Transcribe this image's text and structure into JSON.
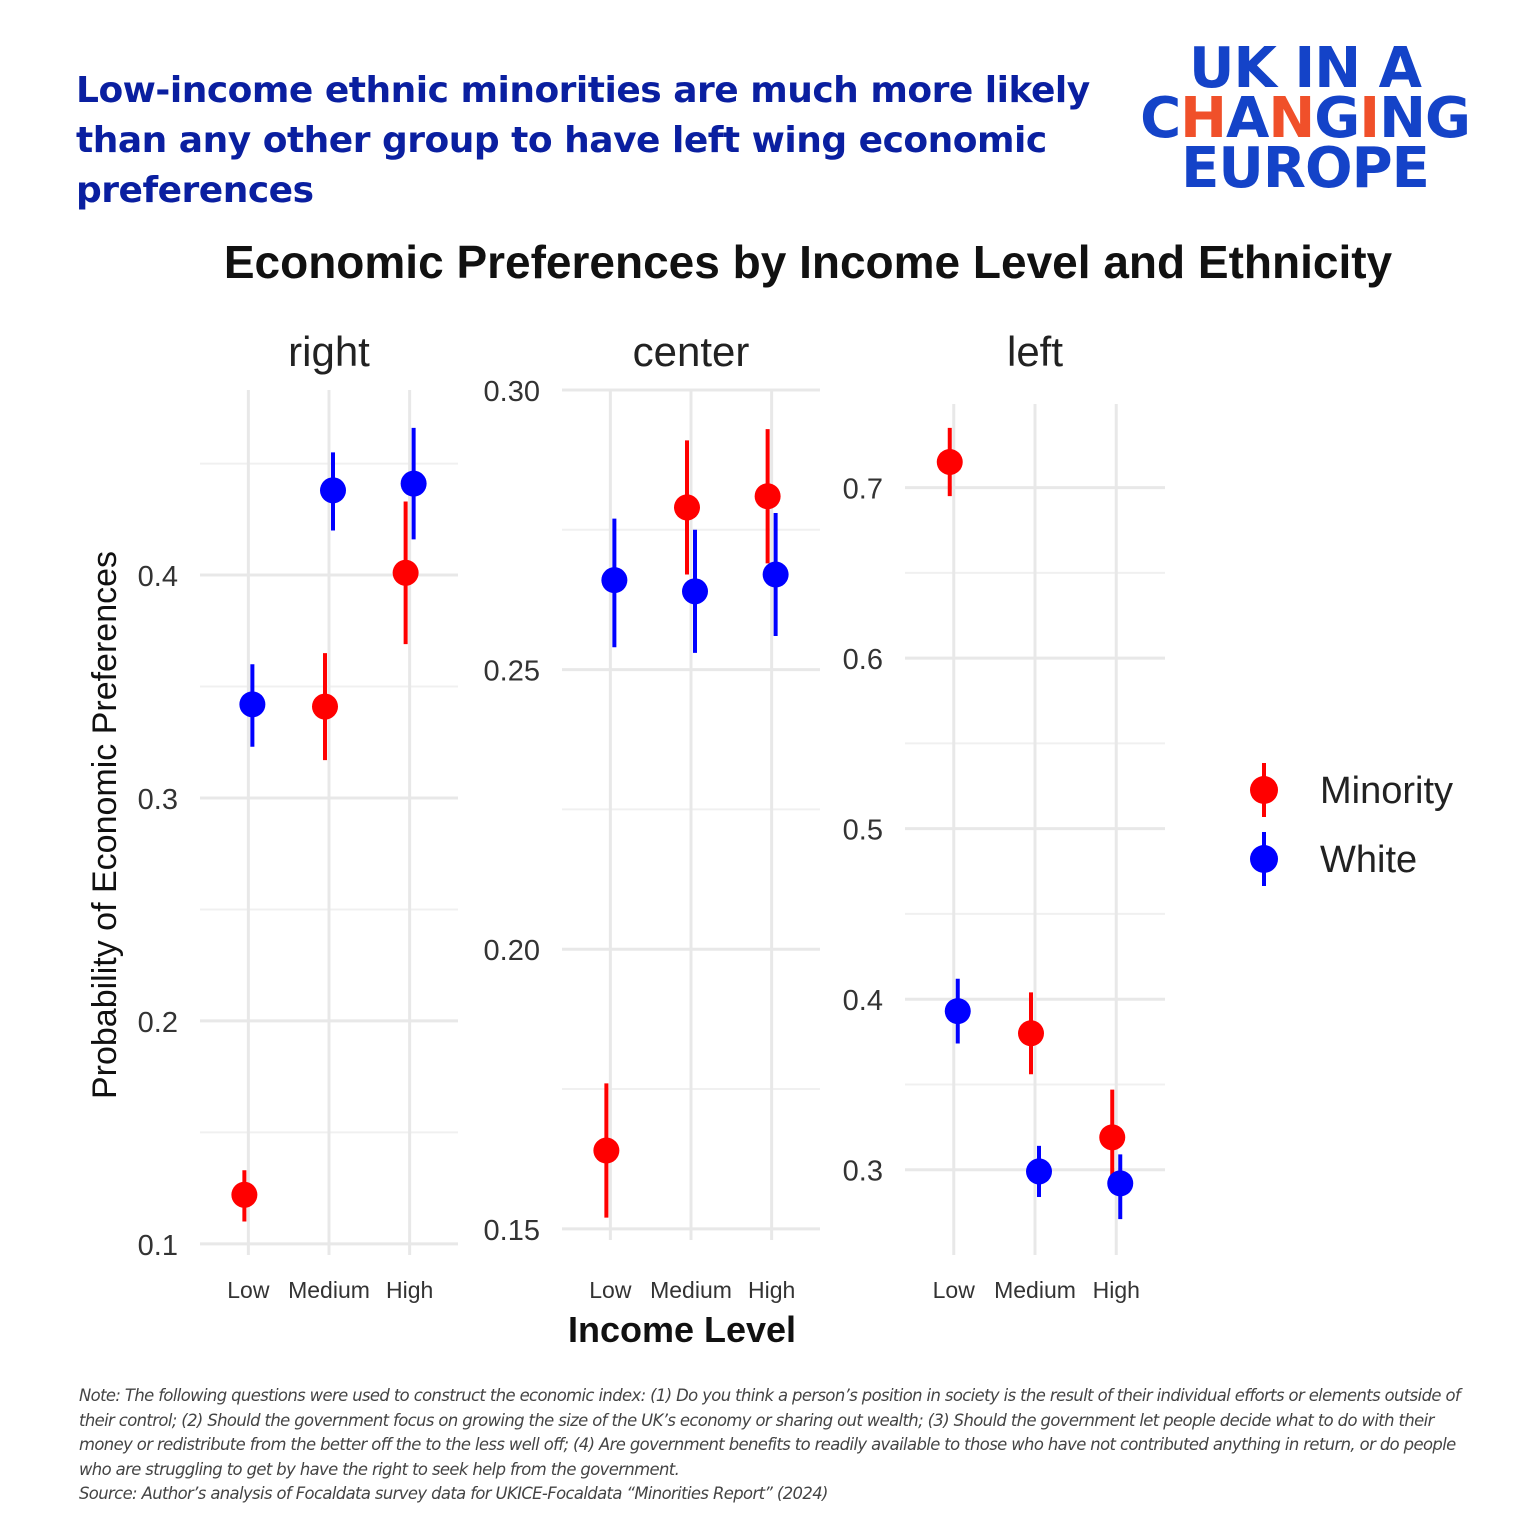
{
  "headline": "Low-income ethnic minorities are much more likely than any other group to have left wing economic preferences",
  "logo": {
    "line1": "UK IN A",
    "line2": "CHANGING",
    "line3": "EUROPE",
    "colors": {
      "main": "#1443c8",
      "accent": "#f0502a"
    }
  },
  "note": "Note: The following questions were used to construct the economic index: (1) Do you think a person’s position in society is the result of their individual efforts or elements outside of their control; (2) Should the government focus on growing the size of the UK’s economy or sharing out wealth; (3) Should the government let people decide what to do with their money or redistribute from the better off the to the less well off; (4) Are government benefits to readily available to those who have not contributed anything in return, or do people who are struggling to get by have the right to seek help from the government.",
  "source": "Source: Author’s analysis of Focaldata survey data for UKICE-Focaldata “Minorities Report” (2024)",
  "chart_data": {
    "type": "scatter",
    "subtype": "point-range faceted",
    "title": "Economic Preferences by Income Level and Ethnicity",
    "xlabel": "Income Level",
    "ylabel": "Probability of Economic Preferences",
    "categories": [
      "Low",
      "Medium",
      "High"
    ],
    "legend": {
      "placement": "right",
      "entries": [
        {
          "name": "Minority",
          "color": "#ff0000"
        },
        {
          "name": "White",
          "color": "#0000ff"
        }
      ]
    },
    "grid": true,
    "facets": [
      {
        "label": "right",
        "ylim": [
          0.095,
          0.483
        ],
        "yticks": [
          0.1,
          0.2,
          0.3,
          0.4
        ],
        "ytick_labels": [
          "0.1",
          "0.2",
          "0.3",
          "0.4"
        ],
        "series": [
          {
            "name": "Minority",
            "values": [
              0.122,
              0.341,
              0.401
            ],
            "lower": [
              0.11,
              0.317,
              0.369
            ],
            "upper": [
              0.133,
              0.365,
              0.433
            ]
          },
          {
            "name": "White",
            "values": [
              0.342,
              0.438,
              0.441
            ],
            "lower": [
              0.323,
              0.42,
              0.416
            ],
            "upper": [
              0.36,
              0.455,
              0.466
            ]
          }
        ]
      },
      {
        "label": "center",
        "ylim": [
          0.148,
          0.3
        ],
        "yticks": [
          0.15,
          0.2,
          0.25,
          0.3
        ],
        "ytick_labels": [
          "0.15",
          "0.20",
          "0.25",
          "0.30"
        ],
        "series": [
          {
            "name": "Minority",
            "values": [
              0.164,
              0.279,
              0.281
            ],
            "lower": [
              0.152,
              0.267,
              0.269
            ],
            "upper": [
              0.176,
              0.291,
              0.293
            ]
          },
          {
            "name": "White",
            "values": [
              0.266,
              0.264,
              0.267
            ],
            "lower": [
              0.254,
              0.253,
              0.256
            ],
            "upper": [
              0.277,
              0.275,
              0.278
            ]
          }
        ]
      },
      {
        "label": "left",
        "ylim": [
          0.25,
          0.749
        ],
        "yticks": [
          0.3,
          0.4,
          0.5,
          0.6,
          0.7
        ],
        "ytick_labels": [
          "0.3",
          "0.4",
          "0.5",
          "0.6",
          "0.7"
        ],
        "series": [
          {
            "name": "Minority",
            "values": [
              0.715,
              0.38,
              0.319
            ],
            "lower": [
              0.695,
              0.356,
              0.291
            ],
            "upper": [
              0.735,
              0.404,
              0.347
            ]
          },
          {
            "name": "White",
            "values": [
              0.393,
              0.299,
              0.292
            ],
            "lower": [
              0.374,
              0.284,
              0.271
            ],
            "upper": [
              0.412,
              0.314,
              0.309
            ]
          }
        ]
      }
    ]
  }
}
